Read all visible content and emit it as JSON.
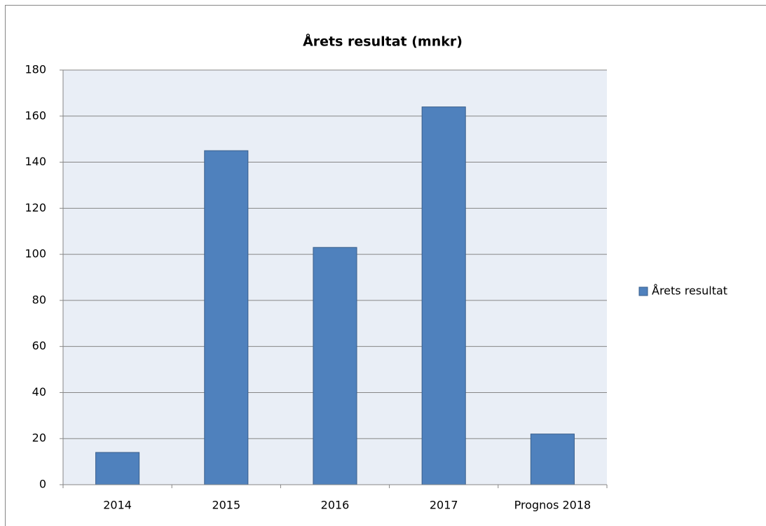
{
  "chart_data": {
    "type": "bar",
    "title": "Årets resultat (mnkr)",
    "categories": [
      "2014",
      "2015",
      "2016",
      "2017",
      "Prognos 2018"
    ],
    "series": [
      {
        "name": "Årets resultat",
        "color": "#4f81bd",
        "values": [
          14,
          145,
          103,
          164,
          22
        ]
      }
    ],
    "ylim": [
      0,
      180
    ],
    "yticks": [
      0,
      20,
      40,
      60,
      80,
      100,
      120,
      140,
      160,
      180
    ],
    "grid": true,
    "legend": "right"
  }
}
